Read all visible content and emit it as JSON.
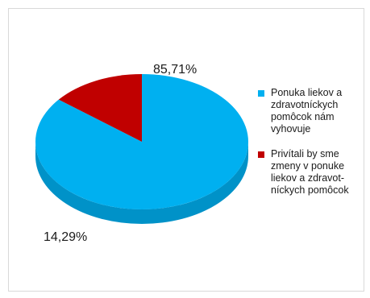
{
  "chart_data": {
    "type": "pie",
    "three_d": true,
    "title": "",
    "slices": [
      {
        "label": "Ponuka liekov  a\nzdravotníckych\npomôcok nám\nvyhovuje",
        "value": 85.71,
        "data_label": "85,71%",
        "color": "#00b0f0",
        "side_color": "#0092c8"
      },
      {
        "label": "Privítali by sme\nzmeny v ponuke\nliekov a zdravot-\nníckych pomôcok",
        "value": 14.29,
        "data_label": "14,29%",
        "color": "#c00000",
        "side_color": "#900000"
      }
    ],
    "legend_position": "right"
  }
}
